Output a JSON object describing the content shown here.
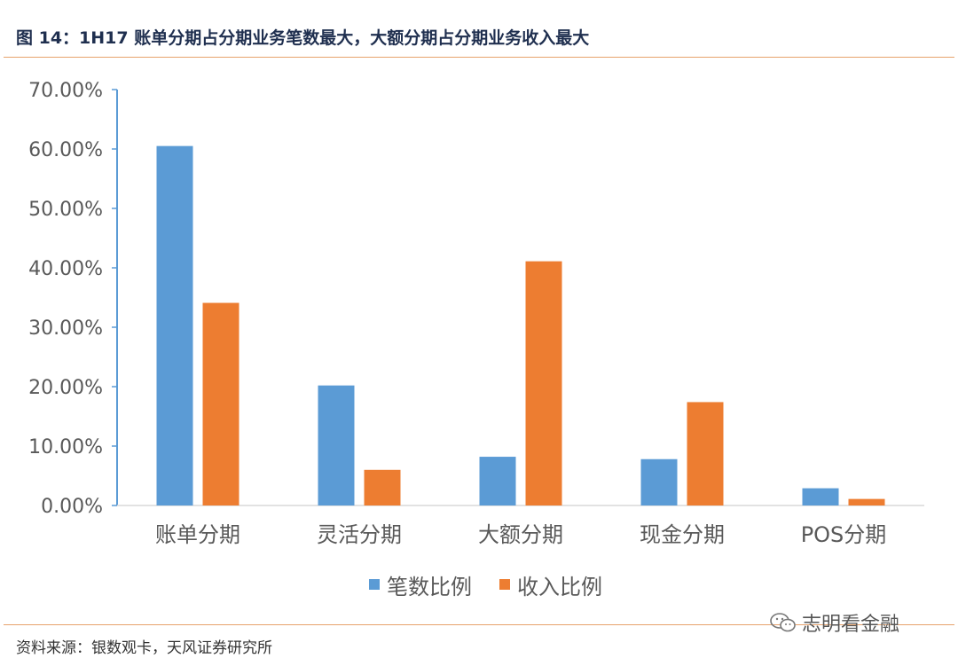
{
  "title": "图 14：1H17 账单分期占分期业务笔数最大，大额分期占分期业务收入最大",
  "source": "资料来源：银数观卡，天风证券研究所",
  "watermark": "志明看金融",
  "colors": {
    "series1": "#5b9bd5",
    "series2": "#ed7d31",
    "axis": "#5b9bd5",
    "rule": "#e7a36d"
  },
  "chart_data": {
    "type": "bar",
    "categories": [
      "账单分期",
      "灵活分期",
      "大额分期",
      "现金分期",
      "POS分期"
    ],
    "series": [
      {
        "name": "笔数比例",
        "values": [
          60.5,
          20.2,
          8.2,
          7.8,
          2.9
        ]
      },
      {
        "name": "收入比例",
        "values": [
          34.1,
          6.0,
          41.1,
          17.4,
          1.1
        ]
      }
    ],
    "yticks": [
      "0.00%",
      "10.00%",
      "20.00%",
      "30.00%",
      "40.00%",
      "50.00%",
      "60.00%",
      "70.00%"
    ],
    "ylim": [
      0,
      70
    ],
    "legend": "bottom"
  }
}
